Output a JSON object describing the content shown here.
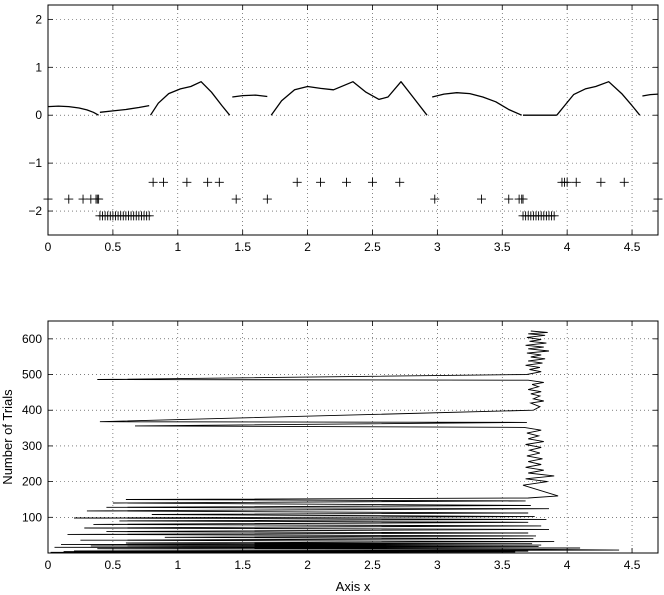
{
  "chart_data": [
    {
      "type": "line",
      "title": "",
      "xlabel": "",
      "ylabel": "",
      "xlim": [
        0,
        4.7
      ],
      "ylim": [
        -2.5,
        2.3
      ],
      "grid": true,
      "xticks": [
        0,
        0.5,
        1,
        1.5,
        2,
        2.5,
        3,
        3.5,
        4,
        4.5
      ],
      "xtick_labels": [
        "0",
        "0.5",
        "1",
        "1.5",
        "2",
        "2.5",
        "3",
        "3.5",
        "4",
        "4.5"
      ],
      "yticks": [
        -2,
        -1,
        0,
        1,
        2
      ],
      "ytick_labels": [
        "−2",
        "−1",
        "0",
        "1",
        "2"
      ],
      "series": [
        {
          "style": "line",
          "segments": [
            [
              [
                0,
                0.18
              ],
              [
                0.08,
                0.19
              ],
              [
                0.16,
                0.18
              ],
              [
                0.24,
                0.15
              ],
              [
                0.3,
                0.11
              ],
              [
                0.35,
                0.06
              ],
              [
                0.39,
                0.0
              ]
            ],
            [
              [
                0.4,
                0.06
              ],
              [
                0.5,
                0.09
              ],
              [
                0.6,
                0.12
              ],
              [
                0.7,
                0.16
              ],
              [
                0.78,
                0.2
              ]
            ],
            [
              [
                0.79,
                0.0
              ],
              [
                0.85,
                0.25
              ],
              [
                0.93,
                0.45
              ],
              [
                1.02,
                0.55
              ],
              [
                1.1,
                0.6
              ],
              [
                1.18,
                0.7
              ],
              [
                1.26,
                0.48
              ],
              [
                1.34,
                0.2
              ],
              [
                1.4,
                0.0
              ]
            ],
            [
              [
                1.42,
                0.38
              ],
              [
                1.5,
                0.41
              ],
              [
                1.6,
                0.42
              ],
              [
                1.69,
                0.39
              ]
            ],
            [
              [
                1.72,
                0.0
              ],
              [
                1.8,
                0.3
              ],
              [
                1.9,
                0.53
              ],
              [
                2.0,
                0.6
              ],
              [
                2.1,
                0.56
              ],
              [
                2.2,
                0.53
              ],
              [
                2.35,
                0.7
              ],
              [
                2.45,
                0.48
              ],
              [
                2.55,
                0.33
              ],
              [
                2.62,
                0.38
              ],
              [
                2.72,
                0.7
              ],
              [
                2.82,
                0.35
              ],
              [
                2.92,
                0.0
              ]
            ],
            [
              [
                2.96,
                0.38
              ],
              [
                3.05,
                0.44
              ],
              [
                3.15,
                0.47
              ],
              [
                3.25,
                0.45
              ],
              [
                3.35,
                0.38
              ],
              [
                3.45,
                0.28
              ],
              [
                3.55,
                0.12
              ],
              [
                3.65,
                0.0
              ]
            ],
            [
              [
                3.66,
                0.0
              ],
              [
                3.8,
                0.0
              ],
              [
                3.92,
                0.0
              ]
            ],
            [
              [
                3.92,
                0.0
              ],
              [
                3.98,
                0.2
              ],
              [
                4.05,
                0.43
              ],
              [
                4.14,
                0.55
              ],
              [
                4.22,
                0.6
              ],
              [
                4.32,
                0.7
              ],
              [
                4.42,
                0.45
              ],
              [
                4.5,
                0.2
              ],
              [
                4.56,
                0.0
              ]
            ],
            [
              [
                4.58,
                0.4
              ],
              [
                4.64,
                0.43
              ],
              [
                4.7,
                0.44
              ]
            ]
          ]
        },
        {
          "style": "plus",
          "y": -1.4,
          "x": [
            0.81,
            0.89,
            1.07,
            1.23,
            1.32,
            1.92,
            2.1,
            2.3,
            2.5,
            2.71,
            3.96,
            3.98,
            4.0,
            4.07,
            4.26,
            4.44
          ]
        },
        {
          "style": "plus",
          "y": -1.75,
          "x": [
            0.0,
            0.16,
            0.27,
            0.33,
            0.37,
            0.38,
            0.39,
            1.45,
            1.69,
            2.98,
            3.34,
            3.55,
            3.63,
            3.65,
            3.66,
            4.7
          ]
        },
        {
          "style": "plus",
          "y": -2.1,
          "x": [
            0.4,
            0.42,
            0.44,
            0.46,
            0.48,
            0.5,
            0.52,
            0.54,
            0.56,
            0.58,
            0.6,
            0.62,
            0.64,
            0.66,
            0.68,
            0.7,
            0.72,
            0.74,
            0.76,
            0.78,
            3.66,
            3.68,
            3.7,
            3.72,
            3.74,
            3.76,
            3.78,
            3.8,
            3.82,
            3.84,
            3.86,
            3.88,
            3.9
          ]
        }
      ]
    },
    {
      "type": "line",
      "title": "",
      "xlabel": "Axis x",
      "ylabel": "Number of Trials",
      "xlim": [
        0,
        4.7
      ],
      "ylim": [
        0,
        650
      ],
      "grid": true,
      "xticks": [
        0,
        0.5,
        1,
        1.5,
        2,
        2.5,
        3,
        3.5,
        4,
        4.5
      ],
      "xtick_labels": [
        "0",
        "0.5",
        "1",
        "1.5",
        "2",
        "2.5",
        "3",
        "3.5",
        "4",
        "4.5"
      ],
      "yticks": [
        100,
        200,
        300,
        400,
        500,
        600
      ],
      "ytick_labels": [
        "100",
        "200",
        "300",
        "400",
        "500",
        "600"
      ],
      "series": [
        {
          "style": "trace",
          "x": [
            3.72,
            3.85,
            3.7,
            3.83,
            3.69,
            3.8,
            3.71,
            3.84,
            3.68,
            3.82,
            3.7,
            3.86,
            3.69,
            3.8,
            3.72,
            3.83,
            3.7,
            3.81,
            3.68,
            3.79,
            3.71,
            3.8,
            3.69,
            0.38,
            3.7,
            3.82,
            3.73,
            3.78,
            3.7,
            3.8,
            3.72,
            3.79,
            3.74,
            3.82,
            3.72,
            3.79,
            3.74,
            0.4,
            3.69,
            0.67,
            3.67,
            3.8,
            3.69,
            3.78,
            3.7,
            3.82,
            3.68,
            3.8,
            3.71,
            3.79,
            3.69,
            3.81,
            3.7,
            3.8,
            3.68,
            3.82,
            3.7,
            3.9,
            3.68,
            3.85,
            3.66,
            3.93,
            3.7,
            0.6,
            3.68,
            0.5,
            3.72,
            0.45,
            3.86,
            0.3,
            3.7,
            0.8,
            3.75,
            0.2,
            3.84,
            0.55,
            3.7,
            0.35,
            3.8,
            0.28,
            3.86,
            0.45,
            3.7,
            0.15,
            3.76,
            0.9,
            3.74,
            0.25,
            3.9,
            0.6,
            3.73,
            0.1,
            3.8,
            0.33,
            3.78,
            0.05,
            4.1,
            0.38,
            3.82,
            4.4,
            0.2,
            3.7,
            0.12,
            3.6,
            0.02
          ],
          "y": [
            622,
            618,
            614,
            610,
            604,
            598,
            593,
            588,
            582,
            577,
            572,
            566,
            560,
            555,
            549,
            544,
            538,
            532,
            526,
            520,
            514,
            508,
            500,
            486,
            484,
            478,
            472,
            466,
            458,
            452,
            446,
            440,
            432,
            426,
            420,
            410,
            400,
            368,
            366,
            356,
            352,
            344,
            336,
            328,
            320,
            312,
            304,
            296,
            288,
            280,
            272,
            264,
            256,
            248,
            240,
            232,
            224,
            216,
            208,
            200,
            190,
            160,
            154,
            150,
            146,
            140,
            133,
            128,
            124,
            118,
            112,
            108,
            102,
            98,
            94,
            90,
            86,
            80,
            76,
            70,
            66,
            60,
            56,
            52,
            48,
            44,
            40,
            36,
            32,
            28,
            26,
            24,
            22,
            20,
            18,
            16,
            14,
            12,
            10,
            8,
            6,
            5,
            4,
            3,
            2
          ]
        }
      ]
    }
  ]
}
